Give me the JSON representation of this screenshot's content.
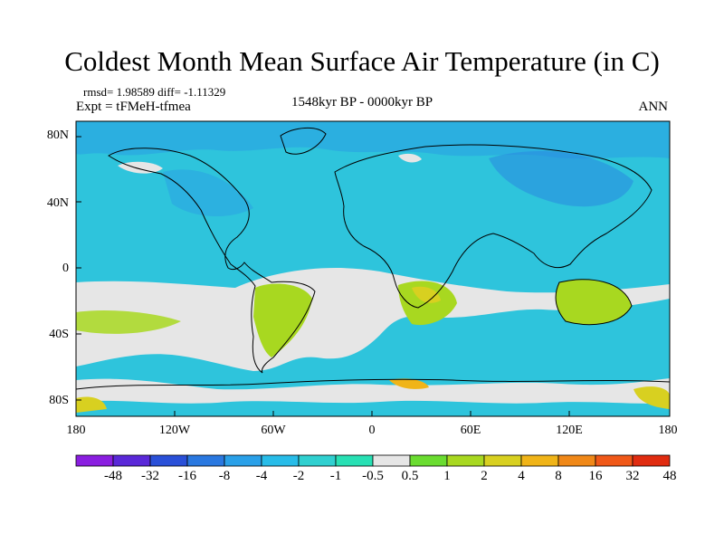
{
  "title": "Coldest Month Mean Surface Air Temperature (in C)",
  "stats": "rmsd= 1.98589 diff= -1.11329",
  "experiment": "Expt = tFMeH-tfmea",
  "period": "1548kyr BP - 0000kyr BP",
  "season": "ANN",
  "lat_labels": [
    "80N",
    "40N",
    "0",
    "40S",
    "80S"
  ],
  "lon_labels": [
    "180",
    "120W",
    "60W",
    "0",
    "60E",
    "120E",
    "180"
  ],
  "colorbar": {
    "labels": [
      "-48",
      "-32",
      "-16",
      "-8",
      "-4",
      "-2",
      "-1",
      "-0.5",
      "0.5",
      "1",
      "2",
      "4",
      "8",
      "16",
      "32",
      "48"
    ],
    "colors": [
      "#8a1ee0",
      "#5a28d8",
      "#2a50d8",
      "#2a78e0",
      "#2aa0e8",
      "#28bce8",
      "#30d0d0",
      "#28e0b4",
      "#e6e6e6",
      "#6adc30",
      "#a8d820",
      "#d8d020",
      "#f0b418",
      "#f08818",
      "#f05818",
      "#e02c10"
    ]
  },
  "colors": {
    "ocean_base": "#2ec4dc",
    "neutral": "#e6e6e6",
    "cool": "#2a9ee4",
    "warm": "#a8d820"
  }
}
